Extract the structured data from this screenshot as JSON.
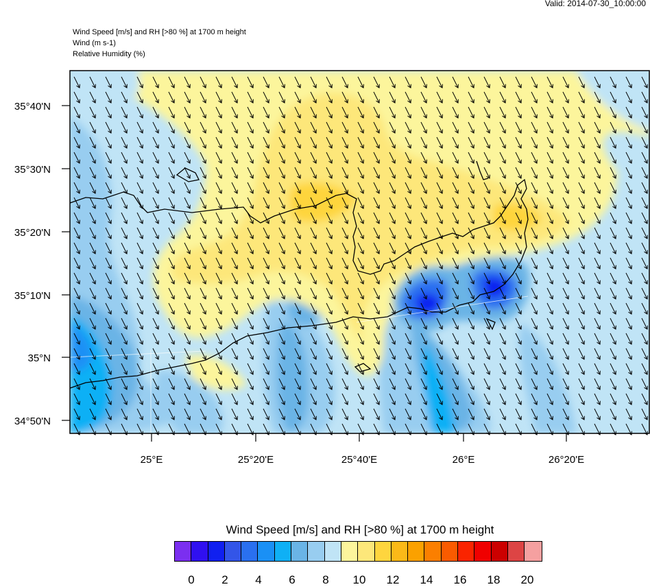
{
  "valid_time": "Valid: 2014-07-30_10:00:00",
  "header": {
    "line1": "Wind Speed [m/s] and RH [>80 %] at 1700 m height",
    "line2": "Wind   (m s-1)",
    "line3": "Relative Humidity   (%)"
  },
  "map": {
    "lat_labels": [
      "35°40'N",
      "35°30'N",
      "35°20'N",
      "35°10'N",
      "35°N",
      "34°50'N"
    ],
    "lon_labels": [
      "25°E",
      "25°20'E",
      "25°40'E",
      "26°E",
      "26°20'E"
    ],
    "wind_arrows_direction": "north-west to south-east"
  },
  "colorbar": {
    "title": "Wind Speed [m/s] and RH [>80 %] at 1700 m height",
    "colors": [
      "#7b2ff0",
      "#3010f0",
      "#1020f0",
      "#3355e8",
      "#2a70f0",
      "#1a90f5",
      "#0fb0f5",
      "#6ab4e6",
      "#98cdf0",
      "#c0e4f6",
      "#fcf59c",
      "#fde77a",
      "#fed53e",
      "#fbb918",
      "#fba100",
      "#fb7f00",
      "#fa5b00",
      "#fa2400",
      "#f00000",
      "#cc0000",
      "#dd4444",
      "#f5a0a0"
    ],
    "ticks": [
      "0",
      "2",
      "4",
      "6",
      "8",
      "10",
      "12",
      "14",
      "16",
      "18",
      "20"
    ]
  }
}
